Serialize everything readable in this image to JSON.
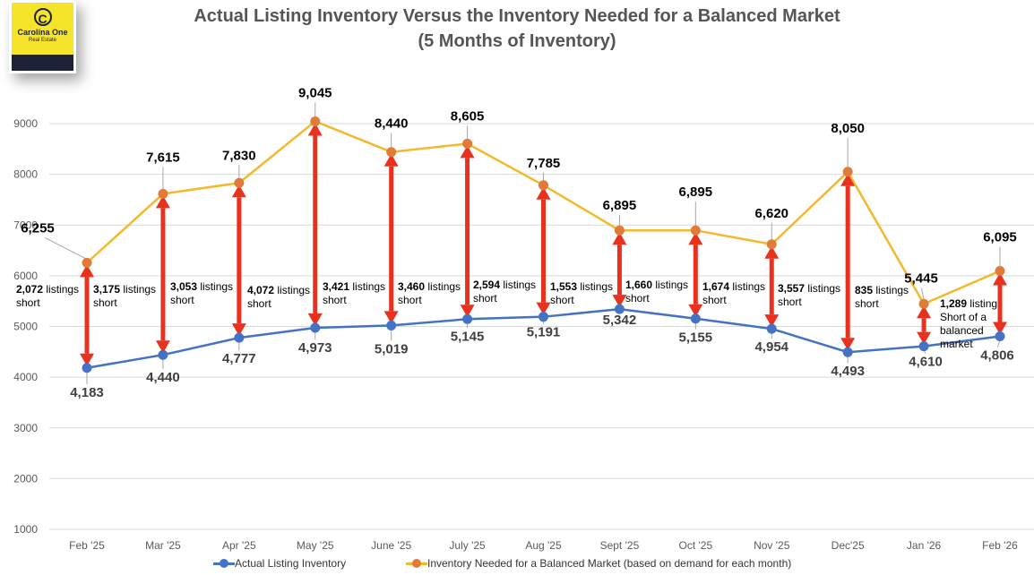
{
  "logo": {
    "mark": "C",
    "name": "Carolina One",
    "sub": "Real Estate"
  },
  "colors": {
    "actual_line": "#4472C4",
    "actual_marker": "#4472C4",
    "needed_line": "#F4B92B",
    "needed_marker": "#E07B39",
    "arrow": "#E8311E",
    "grid": "#D9D9D9",
    "axis_text": "#595959"
  },
  "chart_data": {
    "type": "line",
    "title": "Actual Listing Inventory Versus the Inventory Needed for a Balanced Market",
    "subtitle": "(5 Months of Inventory)",
    "xlabel": "",
    "ylabel": "",
    "ylim": [
      1000,
      9000
    ],
    "yticks": [
      1000,
      2000,
      3000,
      4000,
      5000,
      6000,
      7000,
      8000,
      9000
    ],
    "grid": true,
    "legend_position": "bottom",
    "categories": [
      "Feb '25",
      "Mar '25",
      "Apr '25",
      "May '25",
      "June '25",
      "July '25",
      "Aug '25",
      "Sept '25",
      "Oct '25",
      "Nov '25",
      "Dec'25",
      "Jan '26",
      "Feb '26"
    ],
    "series": [
      {
        "name": "Actual Listing Inventory",
        "values": [
          4183,
          4440,
          4777,
          4973,
          5019,
          5145,
          5191,
          5342,
          5155,
          4954,
          4493,
          4610,
          4806
        ],
        "labels": [
          "4,183",
          "4,440",
          "4,777",
          "4,973",
          "5,019",
          "5,145",
          "5,191",
          "5,342",
          "5,155",
          "4,954",
          "4,493",
          "4,610",
          "4,806"
        ]
      },
      {
        "name": "Inventory Needed for a Balanced Market (based on demand for each month)",
        "values": [
          6255,
          7615,
          7830,
          9045,
          8440,
          8605,
          7785,
          6895,
          6895,
          6620,
          8050,
          5445,
          6095
        ],
        "labels": [
          "6,255",
          "7,615",
          "7,830",
          "9,045",
          "8,440",
          "8,605",
          "7,785",
          "6,895",
          "6,895",
          "6,620",
          "8,050",
          "5,445",
          "6,095"
        ]
      }
    ],
    "annotations": [
      {
        "bold": "2,072",
        "text": " listings",
        "line2": "short",
        "line3": "",
        "line4": ""
      },
      {
        "bold": "3,175",
        "text": " listings",
        "line2": "short",
        "line3": "",
        "line4": ""
      },
      {
        "bold": "3,053",
        "text": " listings",
        "line2": "short",
        "line3": "",
        "line4": ""
      },
      {
        "bold": "4,072",
        "text": " listings",
        "line2": "short",
        "line3": "",
        "line4": ""
      },
      {
        "bold": "3,421",
        "text": " listings",
        "line2": "short",
        "line3": "",
        "line4": ""
      },
      {
        "bold": "3,460",
        "text": " listings",
        "line2": "short",
        "line3": "",
        "line4": ""
      },
      {
        "bold": "2,594",
        "text": " listings",
        "line2": "short",
        "line3": "",
        "line4": ""
      },
      {
        "bold": "1,553",
        "text": " listings",
        "line2": "short",
        "line3": "",
        "line4": ""
      },
      {
        "bold": "1,660",
        "text": " listings",
        "line2": "short",
        "line3": "",
        "line4": ""
      },
      {
        "bold": "1,674",
        "text": " listings",
        "line2": "short",
        "line3": "",
        "line4": ""
      },
      {
        "bold": "3,557",
        "text": " listings",
        "line2": "short",
        "line3": "",
        "line4": ""
      },
      {
        "bold": "835",
        "text": " listings",
        "line2": "short",
        "line3": "",
        "line4": ""
      },
      {
        "bold": "1,289",
        "text": " listing",
        "line2": "Short of a",
        "line3": "balanced",
        "line4": "market"
      }
    ]
  },
  "legend": {
    "actual": "Actual Listing Inventory",
    "needed": "Inventory Needed for a Balanced Market (based on demand for each month)"
  }
}
